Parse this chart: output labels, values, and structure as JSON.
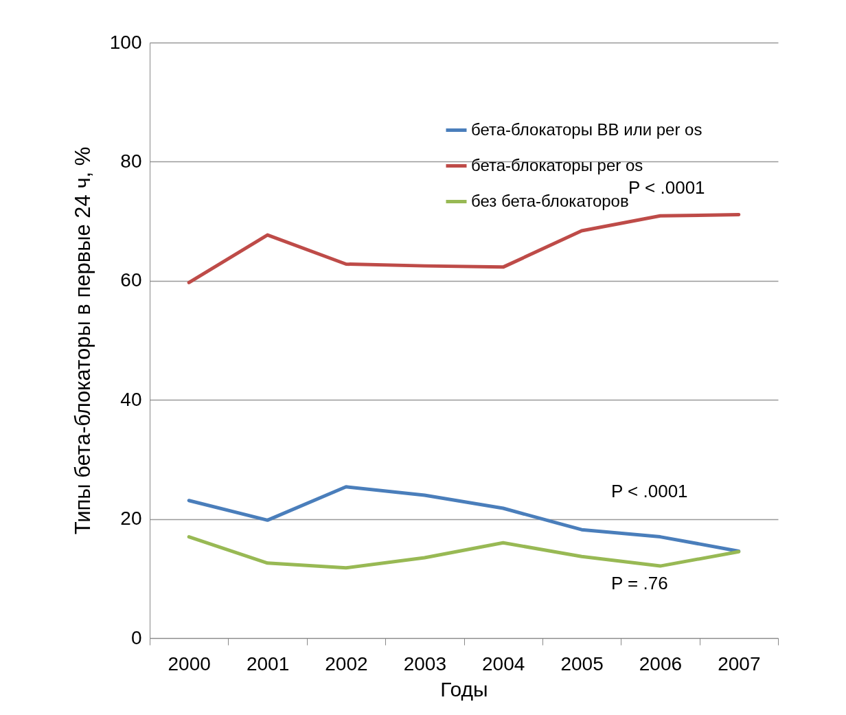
{
  "chart_data": {
    "type": "line",
    "xlabel": "Годы",
    "ylabel": "Типы бета-блокаторы в первые 24 ч, %",
    "categories": [
      "2000",
      "2001",
      "2002",
      "2003",
      "2004",
      "2005",
      "2006",
      "2007"
    ],
    "series": [
      {
        "name": "бета-блокаторы ВВ или per os",
        "color": "#4a7ebb",
        "values": [
          23.1,
          19.8,
          25.4,
          24.0,
          21.8,
          18.2,
          17.0,
          14.6
        ]
      },
      {
        "name": "бета-блокаторы per os",
        "color": "#be4b48",
        "values": [
          59.7,
          67.7,
          62.8,
          62.5,
          62.3,
          68.4,
          70.9,
          71.1
        ]
      },
      {
        "name": "без бета-блокаторов",
        "color": "#98b954",
        "values": [
          17.0,
          12.6,
          11.8,
          13.5,
          16.0,
          13.7,
          12.1,
          14.5
        ]
      }
    ],
    "ylim": [
      0,
      100
    ],
    "yticks": [
      0,
      20,
      40,
      60,
      80,
      100
    ],
    "grid": "y",
    "legend": "top right",
    "marker": "none",
    "line_style": "solid",
    "annotations": [
      "P < .0001",
      "P  < .0001",
      "P  = .76"
    ]
  }
}
